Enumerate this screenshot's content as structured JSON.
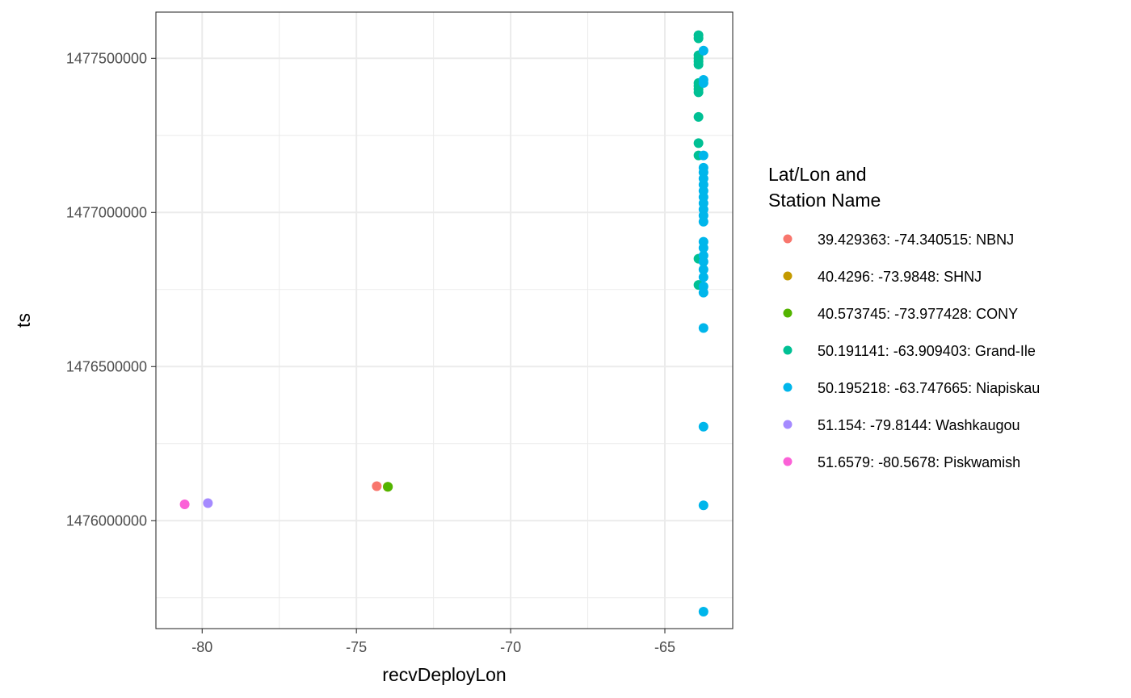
{
  "chart_data": {
    "type": "scatter",
    "xlabel": "recvDeployLon",
    "ylabel": "ts",
    "xlim": [
      -81.5,
      -62.8
    ],
    "ylim": [
      1475650000,
      1477650000
    ],
    "x_ticks": [
      -80,
      -75,
      -70,
      -65
    ],
    "x_tick_labels": [
      "-80",
      "-75",
      "-70",
      "-65"
    ],
    "y_ticks": [
      1476000000,
      1476500000,
      1477000000,
      1477500000
    ],
    "y_tick_labels": [
      "1476000000",
      "1476500000",
      "1477000000",
      "1477500000"
    ],
    "grid": true,
    "legend": {
      "title_lines": [
        "Lat/Lon and",
        "Station Name"
      ],
      "placement": "right"
    },
    "series": [
      {
        "name": "39.429363: -74.340515: NBNJ",
        "color": "#F8766D",
        "points": [
          [
            -74.340515,
            1476112000
          ]
        ]
      },
      {
        "name": "40.4296: -73.9848: SHNJ",
        "color": "#C49A00",
        "points": [
          [
            -73.9848,
            1476110000
          ]
        ]
      },
      {
        "name": "40.573745: -73.977428: CONY",
        "color": "#53B400",
        "points": [
          [
            -73.977428,
            1476110000
          ]
        ]
      },
      {
        "name": "50.191141: -63.909403: Grand-Ile",
        "color": "#00C094",
        "points": [
          [
            -63.909403,
            1477575000
          ],
          [
            -63.909403,
            1477565000
          ],
          [
            -63.909403,
            1477510000
          ],
          [
            -63.909403,
            1477500000
          ],
          [
            -63.909403,
            1477490000
          ],
          [
            -63.909403,
            1477480000
          ],
          [
            -63.909403,
            1477420000
          ],
          [
            -63.909403,
            1477410000
          ],
          [
            -63.909403,
            1477400000
          ],
          [
            -63.909403,
            1477390000
          ],
          [
            -63.909403,
            1477310000
          ],
          [
            -63.909403,
            1477225000
          ],
          [
            -63.909403,
            1477185000
          ],
          [
            -63.909403,
            1476850000
          ],
          [
            -63.909403,
            1476765000
          ]
        ]
      },
      {
        "name": "50.195218: -63.747665: Niapiskau",
        "color": "#00B6EB",
        "points": [
          [
            -63.747665,
            1477525000
          ],
          [
            -63.747665,
            1477430000
          ],
          [
            -63.747665,
            1477420000
          ],
          [
            -63.747665,
            1477185000
          ],
          [
            -63.747665,
            1477145000
          ],
          [
            -63.747665,
            1477130000
          ],
          [
            -63.747665,
            1477110000
          ],
          [
            -63.747665,
            1477090000
          ],
          [
            -63.747665,
            1477070000
          ],
          [
            -63.747665,
            1477050000
          ],
          [
            -63.747665,
            1477030000
          ],
          [
            -63.747665,
            1477010000
          ],
          [
            -63.747665,
            1476990000
          ],
          [
            -63.747665,
            1476970000
          ],
          [
            -63.747665,
            1476905000
          ],
          [
            -63.747665,
            1476885000
          ],
          [
            -63.747665,
            1476860000
          ],
          [
            -63.747665,
            1476840000
          ],
          [
            -63.747665,
            1476815000
          ],
          [
            -63.747665,
            1476790000
          ],
          [
            -63.747665,
            1476760000
          ],
          [
            -63.747665,
            1476740000
          ],
          [
            -63.747665,
            1476625000
          ],
          [
            -63.747665,
            1476305000
          ],
          [
            -63.747665,
            1476050000
          ],
          [
            -63.747665,
            1475705000
          ]
        ]
      },
      {
        "name": "51.154: -79.8144: Washkaugou",
        "color": "#A58AFF",
        "points": [
          [
            -79.8144,
            1476057000
          ]
        ]
      },
      {
        "name": "51.6579: -80.5678: Piskwamish",
        "color": "#FB61D7",
        "points": [
          [
            -80.5678,
            1476053000
          ]
        ]
      }
    ]
  }
}
